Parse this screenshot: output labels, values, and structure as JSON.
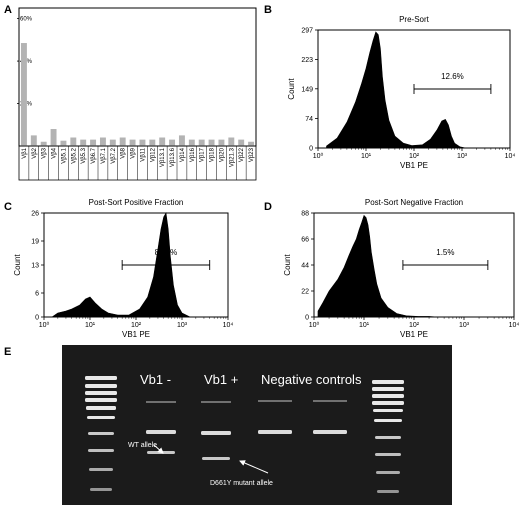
{
  "panel_labels": {
    "a": "A",
    "b": "B",
    "c": "C",
    "d": "D",
    "e": "E"
  },
  "chart_data": [
    {
      "panel": "A",
      "type": "bar",
      "title": "",
      "xlabel": "",
      "ylabel": "",
      "ylim": [
        0,
        65
      ],
      "ytick_labels": [
        "20%",
        "40%",
        "60%"
      ],
      "yticks": [
        20,
        40,
        60
      ],
      "grid": false,
      "categories": [
        "Vβ1",
        "Vβ2",
        "Vβ3",
        "Vβ4",
        "Vβ5.1",
        "Vβ5.2",
        "Vβ5.3",
        "Vβ6.7",
        "Vβ7.1",
        "Vβ7.2",
        "Vβ8",
        "Vβ9",
        "Vβ11",
        "Vβ12",
        "Vβ13.1",
        "Vβ13.6",
        "Vβ14",
        "Vβ16",
        "Vβ17",
        "Vβ18",
        "Vβ20",
        "Vβ21.3",
        "Vβ22",
        "Vβ23"
      ],
      "values": [
        48.5,
        5,
        2,
        8,
        2.5,
        4,
        3,
        3,
        4,
        3,
        4,
        3,
        3,
        3,
        4,
        3,
        5,
        3,
        3,
        3,
        3,
        4,
        3,
        2
      ]
    },
    {
      "panel": "B",
      "type": "area",
      "title": "Pre-Sort",
      "xlabel": "VB1 PE",
      "ylabel": "Count",
      "xscale": "log",
      "xlim": [
        1,
        10000
      ],
      "ylim": [
        0,
        297
      ],
      "yticks": [
        0,
        74,
        149,
        223,
        297
      ],
      "xtick_labels": [
        "10⁰",
        "10¹",
        "10²",
        "10³",
        "10⁴"
      ],
      "gate": {
        "from": 100,
        "to": 4000,
        "label": "12.6%"
      },
      "x": [
        1.5,
        2.5,
        4,
        6,
        8,
        10,
        12,
        14,
        16,
        18,
        20,
        22,
        25,
        30,
        40,
        60,
        90,
        150,
        220,
        300,
        380,
        450,
        520,
        600,
        700,
        900,
        1200
      ],
      "y": [
        5,
        25,
        65,
        115,
        160,
        200,
        240,
        270,
        292,
        285,
        250,
        180,
        120,
        70,
        30,
        12,
        6,
        8,
        22,
        45,
        68,
        72,
        58,
        30,
        12,
        3,
        0
      ]
    },
    {
      "panel": "C",
      "type": "area",
      "title": "Post-Sort Positive Fraction",
      "xlabel": "VB1 PE",
      "ylabel": "Count",
      "xscale": "log",
      "xlim": [
        1,
        10000
      ],
      "ylim": [
        0,
        26
      ],
      "yticks": [
        0,
        6,
        13,
        19,
        26
      ],
      "xtick_labels": [
        "10⁰",
        "10¹",
        "10²",
        "10³",
        "10⁴"
      ],
      "gate": {
        "from": 50,
        "to": 4000,
        "label": "83.5%"
      },
      "x": [
        1.5,
        2,
        3,
        4,
        6,
        8,
        10,
        13,
        18,
        25,
        40,
        70,
        120,
        180,
        240,
        300,
        350,
        400,
        450,
        500,
        560,
        650,
        800,
        1000,
        1500
      ],
      "y": [
        0,
        1,
        1.5,
        2,
        3,
        4.5,
        5,
        3.5,
        2,
        1,
        0.5,
        0.5,
        2,
        5,
        10,
        17,
        22,
        25,
        26,
        22,
        15,
        8,
        3,
        1,
        0
      ]
    },
    {
      "panel": "D",
      "type": "area",
      "title": "Post-Sort Negative Fraction",
      "xlabel": "VB1 PE",
      "ylabel": "Count",
      "xscale": "log",
      "xlim": [
        1,
        10000
      ],
      "ylim": [
        0,
        88
      ],
      "yticks": [
        0,
        22,
        44,
        66,
        88
      ],
      "xtick_labels": [
        "10⁰",
        "10¹",
        "10²",
        "10³",
        "10⁴"
      ],
      "gate": {
        "from": 60,
        "to": 3000,
        "label": "1.5%"
      },
      "x": [
        1.2,
        1.5,
        2,
        3,
        4,
        5,
        6,
        7,
        8,
        9,
        10,
        11,
        12,
        13,
        14,
        16,
        18,
        22,
        30,
        45,
        70,
        120,
        200,
        300
      ],
      "y": [
        5,
        12,
        22,
        32,
        42,
        52,
        60,
        66,
        74,
        80,
        86,
        84,
        78,
        68,
        55,
        40,
        28,
        16,
        8,
        3,
        1,
        0.5,
        0.5,
        0
      ]
    }
  ],
  "gel": {
    "lane_labels": [
      "Vb1 -",
      "Vb1 +",
      "Negative controls"
    ],
    "annotations": [
      "WT allele",
      "D661Y mutant allele"
    ]
  }
}
